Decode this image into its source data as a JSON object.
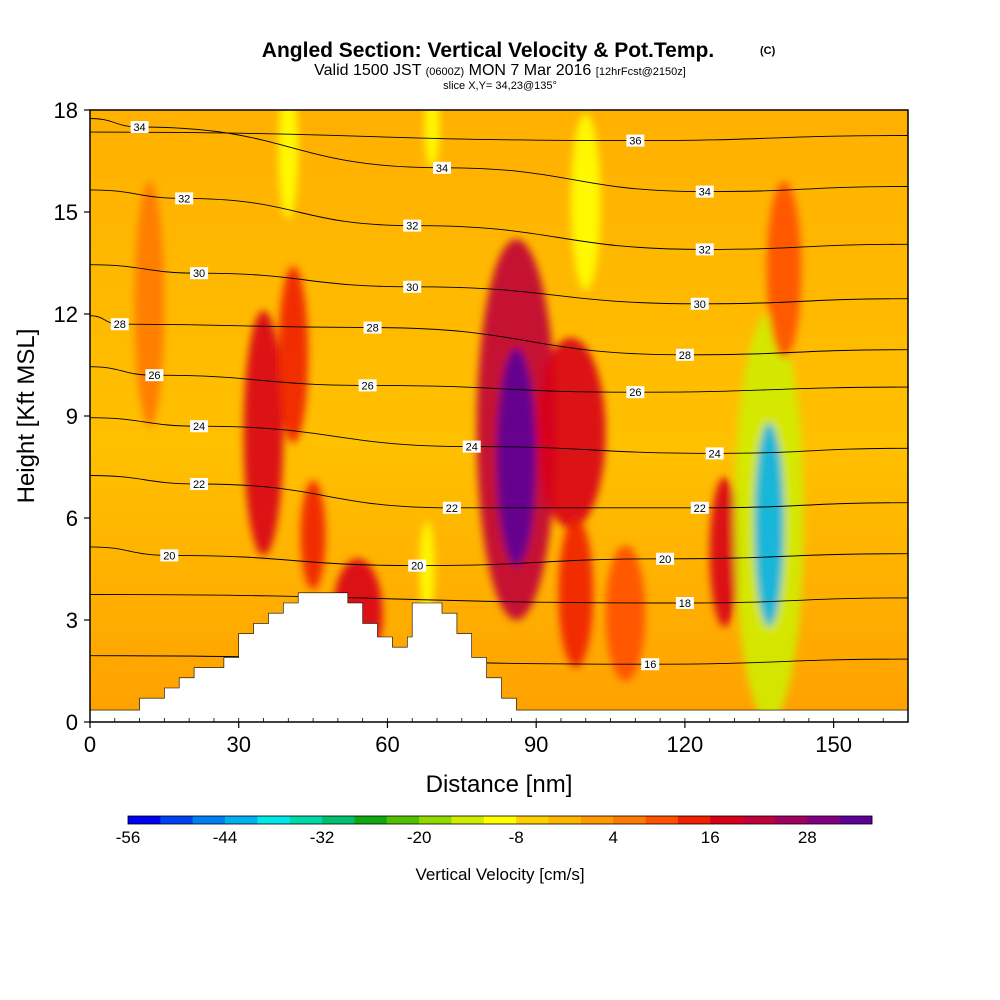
{
  "chart_data": {
    "type": "heatmap",
    "title": "Angled Section: Vertical Velocity & Pot.Temp.",
    "title_unit": "(C)",
    "subtitle_parts": [
      "Valid 1500 JST ",
      "(0600Z)",
      " MON 7 Mar 2016 ",
      "[12hrFcst@2150z]"
    ],
    "subtitle2": "slice X,Y= 34,23@135°",
    "xlabel": "Distance [nm]",
    "ylabel": "Height [Kft MSL]",
    "xlim": [
      0,
      165
    ],
    "ylim": [
      0,
      18
    ],
    "x_ticks": [
      0,
      30,
      60,
      90,
      120,
      150
    ],
    "y_ticks": [
      0,
      3,
      6,
      9,
      12,
      15,
      18
    ],
    "grid": false,
    "colorbar": {
      "label": "Vertical Velocity [cm/s]",
      "tick_labels": [
        "-56",
        "-44",
        "-32",
        "-20",
        "-8",
        "4",
        "16",
        "28"
      ],
      "bounds": [
        -56,
        36
      ],
      "step": 4,
      "colors": [
        "#0000f0",
        "#0040f0",
        "#0080f0",
        "#00b0f0",
        "#00e8e8",
        "#00d8a8",
        "#00c070",
        "#10a810",
        "#50c000",
        "#90d800",
        "#d0ec00",
        "#ffff00",
        "#ffd000",
        "#ffb400",
        "#ff9800",
        "#ff7800",
        "#ff5000",
        "#f02000",
        "#d80018",
        "#c00038",
        "#a00060",
        "#800080",
        "#5c0098"
      ]
    },
    "theta_contours": [
      {
        "value": 16,
        "labels": [
          [
            113,
            1.7
          ]
        ]
      },
      {
        "value": 18,
        "labels": [
          [
            120,
            3.5
          ]
        ]
      },
      {
        "value": 20,
        "labels": [
          [
            16,
            4.9
          ],
          [
            66,
            4.6
          ],
          [
            116,
            4.8
          ]
        ]
      },
      {
        "value": 22,
        "labels": [
          [
            22,
            7.0
          ],
          [
            73,
            6.3
          ],
          [
            123,
            6.3
          ]
        ]
      },
      {
        "value": 24,
        "labels": [
          [
            22,
            8.7
          ],
          [
            77,
            8.1
          ],
          [
            126,
            7.9
          ]
        ]
      },
      {
        "value": 26,
        "labels": [
          [
            13,
            10.2
          ],
          [
            56,
            9.9
          ],
          [
            110,
            9.7
          ]
        ]
      },
      {
        "value": 28,
        "labels": [
          [
            6,
            11.7
          ],
          [
            57,
            11.6
          ],
          [
            120,
            10.8
          ]
        ]
      },
      {
        "value": 30,
        "labels": [
          [
            22,
            13.2
          ],
          [
            65,
            12.8
          ],
          [
            123,
            12.3
          ]
        ]
      },
      {
        "value": 32,
        "labels": [
          [
            19,
            15.4
          ],
          [
            65,
            14.6
          ],
          [
            124,
            13.9
          ]
        ]
      },
      {
        "value": 34,
        "labels": [
          [
            10,
            17.5
          ],
          [
            71,
            16.3
          ],
          [
            124,
            15.6
          ]
        ]
      },
      {
        "value": 36,
        "labels": [
          [
            110,
            17.1
          ]
        ]
      }
    ],
    "velocity_cells": [
      {
        "x": 35,
        "y": 8.5,
        "w": 4,
        "h": 3.6,
        "value": 16
      },
      {
        "x": 41,
        "y": 10.8,
        "w": 3,
        "h": 2.6,
        "value": 14
      },
      {
        "x": 45,
        "y": 5.5,
        "w": 2.5,
        "h": 1.6,
        "value": 12
      },
      {
        "x": 54,
        "y": 3.2,
        "w": 5,
        "h": 1.6,
        "value": 16
      },
      {
        "x": 68,
        "y": 4.5,
        "w": 1.5,
        "h": 1.4,
        "value": -12
      },
      {
        "x": 86,
        "y": 8.6,
        "w": 8,
        "h": 5.6,
        "value": 20
      },
      {
        "x": 86,
        "y": 7.8,
        "w": 4,
        "h": 3.2,
        "value": 32
      },
      {
        "x": 97,
        "y": 8.5,
        "w": 7,
        "h": 2.8,
        "value": 16
      },
      {
        "x": 98,
        "y": 3.8,
        "w": 3.5,
        "h": 2.2,
        "value": 14
      },
      {
        "x": 108,
        "y": 3.2,
        "w": 4,
        "h": 2.0,
        "value": 10
      },
      {
        "x": 128,
        "y": 5.0,
        "w": 3,
        "h": 2.2,
        "value": 16
      },
      {
        "x": 137,
        "y": 6.0,
        "w": 7,
        "h": 6.0,
        "value": -16
      },
      {
        "x": 137,
        "y": 5.8,
        "w": 3,
        "h": 3.0,
        "value": -44
      },
      {
        "x": 100,
        "y": 15.3,
        "w": 3,
        "h": 2.6,
        "value": -12
      },
      {
        "x": 40,
        "y": 16.8,
        "w": 2,
        "h": 2.0,
        "value": -12
      },
      {
        "x": 69,
        "y": 17.5,
        "w": 1.5,
        "h": 1.2,
        "value": -12
      },
      {
        "x": 140,
        "y": 13.3,
        "w": 3.5,
        "h": 2.6,
        "value": 8
      },
      {
        "x": 12,
        "y": 12.3,
        "w": 3,
        "h": 3.6,
        "value": 6
      }
    ],
    "terrain": [
      [
        0,
        0.35
      ],
      [
        10,
        0.35
      ],
      [
        10,
        0.7
      ],
      [
        15,
        0.7
      ],
      [
        15,
        1.0
      ],
      [
        18,
        1.0
      ],
      [
        18,
        1.3
      ],
      [
        21,
        1.3
      ],
      [
        21,
        1.6
      ],
      [
        27,
        1.6
      ],
      [
        27,
        1.9
      ],
      [
        30,
        1.9
      ],
      [
        30,
        2.6
      ],
      [
        33,
        2.6
      ],
      [
        33,
        2.9
      ],
      [
        36,
        2.9
      ],
      [
        36,
        3.2
      ],
      [
        39,
        3.2
      ],
      [
        39,
        3.5
      ],
      [
        42,
        3.5
      ],
      [
        42,
        3.8
      ],
      [
        52,
        3.8
      ],
      [
        52,
        3.5
      ],
      [
        55,
        3.5
      ],
      [
        55,
        2.9
      ],
      [
        58,
        2.9
      ],
      [
        58,
        2.5
      ],
      [
        61,
        2.5
      ],
      [
        61,
        2.2
      ],
      [
        64,
        2.2
      ],
      [
        64,
        2.5
      ],
      [
        65,
        2.5
      ],
      [
        65,
        3.5
      ],
      [
        71,
        3.5
      ],
      [
        71,
        3.2
      ],
      [
        74,
        3.2
      ],
      [
        74,
        2.6
      ],
      [
        77,
        2.6
      ],
      [
        77,
        1.9
      ],
      [
        80,
        1.9
      ],
      [
        80,
        1.3
      ],
      [
        83,
        1.3
      ],
      [
        83,
        0.7
      ],
      [
        86,
        0.7
      ],
      [
        86,
        0.35
      ],
      [
        165,
        0.35
      ]
    ]
  }
}
